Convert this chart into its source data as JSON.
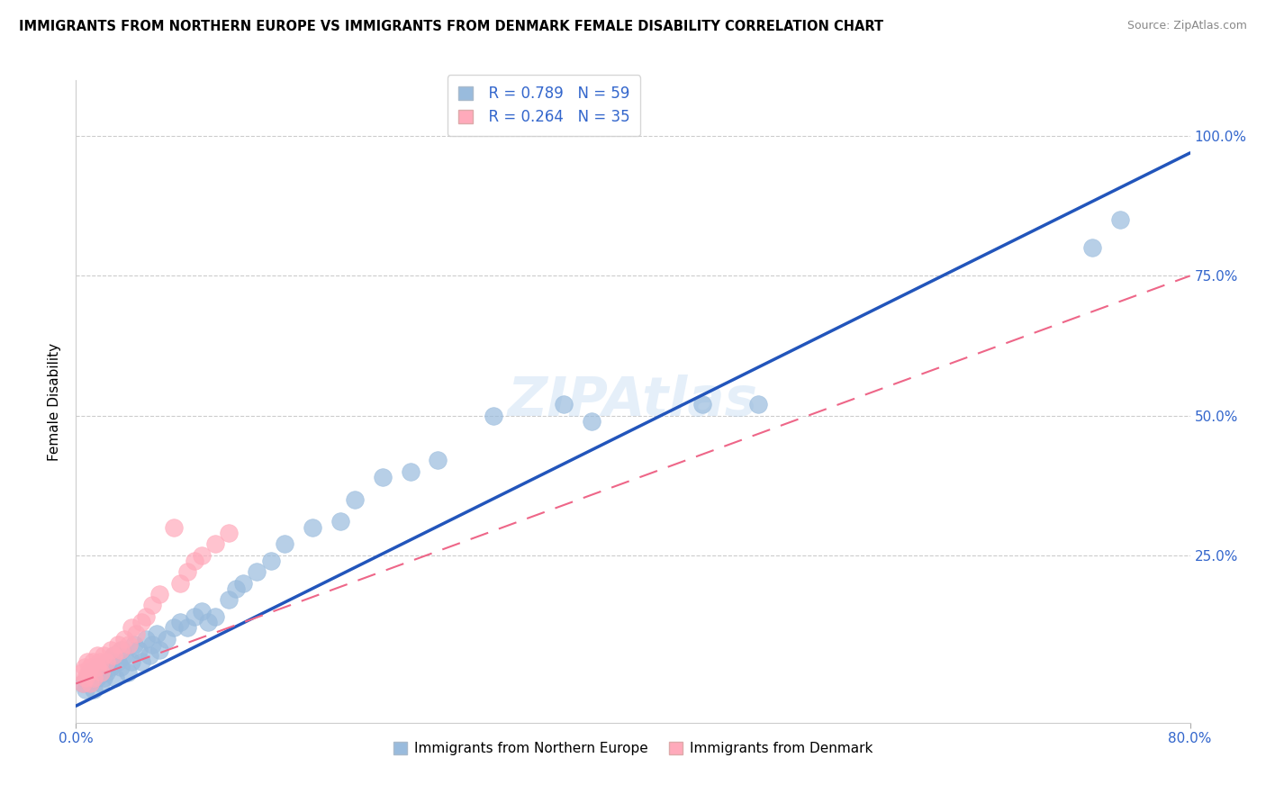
{
  "title": "IMMIGRANTS FROM NORTHERN EUROPE VS IMMIGRANTS FROM DENMARK FEMALE DISABILITY CORRELATION CHART",
  "source": "Source: ZipAtlas.com",
  "ylabel": "Female Disability",
  "xlim": [
    0.0,
    0.8
  ],
  "ylim": [
    -0.05,
    1.1
  ],
  "xtick_labels": [
    "0.0%",
    "80.0%"
  ],
  "ytick_labels": [
    "25.0%",
    "50.0%",
    "75.0%",
    "100.0%"
  ],
  "ytick_values": [
    0.25,
    0.5,
    0.75,
    1.0
  ],
  "legend_blue_r": "R = 0.789",
  "legend_blue_n": "N = 59",
  "legend_pink_r": "R = 0.264",
  "legend_pink_n": "N = 35",
  "blue_color": "#99BBDD",
  "pink_color": "#FFAABB",
  "blue_line_color": "#2255BB",
  "pink_line_color": "#EE6688",
  "watermark": "ZIPAtlas",
  "blue_scatter_x": [
    0.005,
    0.007,
    0.008,
    0.01,
    0.01,
    0.012,
    0.013,
    0.015,
    0.015,
    0.017,
    0.018,
    0.02,
    0.02,
    0.022,
    0.023,
    0.025,
    0.027,
    0.028,
    0.03,
    0.032,
    0.033,
    0.035,
    0.037,
    0.04,
    0.042,
    0.045,
    0.047,
    0.05,
    0.053,
    0.055,
    0.058,
    0.06,
    0.065,
    0.07,
    0.075,
    0.08,
    0.085,
    0.09,
    0.095,
    0.1,
    0.11,
    0.115,
    0.12,
    0.13,
    0.14,
    0.15,
    0.17,
    0.19,
    0.2,
    0.22,
    0.24,
    0.26,
    0.3,
    0.35,
    0.37,
    0.45,
    0.49,
    0.73,
    0.75
  ],
  "blue_scatter_y": [
    0.02,
    0.01,
    0.03,
    0.02,
    0.04,
    0.03,
    0.01,
    0.03,
    0.05,
    0.04,
    0.02,
    0.03,
    0.05,
    0.04,
    0.06,
    0.05,
    0.07,
    0.03,
    0.06,
    0.05,
    0.08,
    0.07,
    0.04,
    0.06,
    0.09,
    0.08,
    0.06,
    0.1,
    0.07,
    0.09,
    0.11,
    0.08,
    0.1,
    0.12,
    0.13,
    0.12,
    0.14,
    0.15,
    0.13,
    0.14,
    0.17,
    0.19,
    0.2,
    0.22,
    0.24,
    0.27,
    0.3,
    0.31,
    0.35,
    0.39,
    0.4,
    0.42,
    0.5,
    0.52,
    0.49,
    0.52,
    0.52,
    0.8,
    0.85
  ],
  "pink_scatter_x": [
    0.004,
    0.005,
    0.006,
    0.007,
    0.008,
    0.009,
    0.01,
    0.01,
    0.012,
    0.013,
    0.015,
    0.015,
    0.017,
    0.018,
    0.02,
    0.022,
    0.025,
    0.027,
    0.03,
    0.032,
    0.035,
    0.038,
    0.04,
    0.043,
    0.047,
    0.05,
    0.055,
    0.06,
    0.07,
    0.075,
    0.08,
    0.085,
    0.09,
    0.1,
    0.11
  ],
  "pink_scatter_y": [
    0.04,
    0.02,
    0.05,
    0.03,
    0.06,
    0.04,
    0.02,
    0.05,
    0.06,
    0.03,
    0.05,
    0.07,
    0.06,
    0.04,
    0.07,
    0.06,
    0.08,
    0.07,
    0.09,
    0.08,
    0.1,
    0.09,
    0.12,
    0.11,
    0.13,
    0.14,
    0.16,
    0.18,
    0.3,
    0.2,
    0.22,
    0.24,
    0.25,
    0.27,
    0.29
  ],
  "blue_line_x": [
    0.0,
    0.8
  ],
  "blue_line_y": [
    -0.02,
    0.97
  ],
  "pink_line_x": [
    0.0,
    0.8
  ],
  "pink_line_y": [
    0.02,
    0.75
  ]
}
